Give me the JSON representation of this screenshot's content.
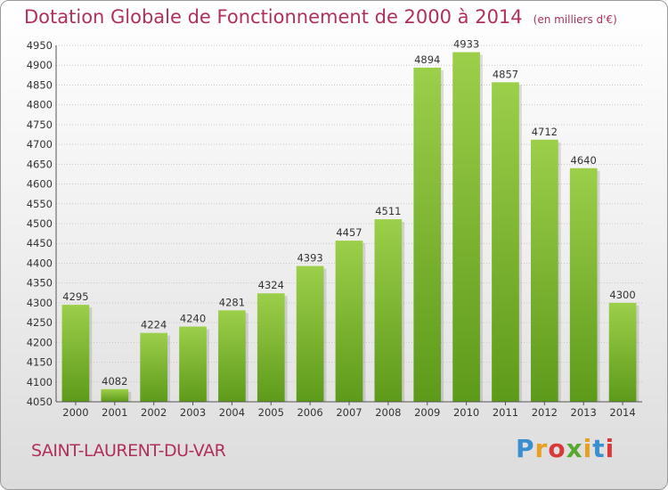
{
  "chart_data": {
    "type": "bar",
    "title": "Dotation Globale de Fonctionnement de 2000 à 2014",
    "unit_label": "(en milliers d'€)",
    "categories": [
      "2000",
      "2001",
      "2002",
      "2003",
      "2004",
      "2005",
      "2006",
      "2007",
      "2008",
      "2009",
      "2010",
      "2011",
      "2012",
      "2013",
      "2014"
    ],
    "values": [
      4295,
      4082,
      4224,
      4240,
      4281,
      4324,
      4393,
      4457,
      4511,
      4894,
      4933,
      4857,
      4712,
      4640,
      4300
    ],
    "ylim": [
      4050,
      4950
    ],
    "ytick_step": 50,
    "grid": true,
    "bar_color": "#7fbf2e"
  },
  "footer": {
    "city": "SAINT-LAURENT-DU-VAR",
    "logo_letters": [
      "P",
      "r",
      "o",
      "x",
      "i",
      "t",
      "i"
    ],
    "logo_colors": [
      "#3a8fd0",
      "#e8a020",
      "#d83a3a",
      "#58a830",
      "#e8a020",
      "#3a8fd0",
      "#d83a3a"
    ]
  }
}
